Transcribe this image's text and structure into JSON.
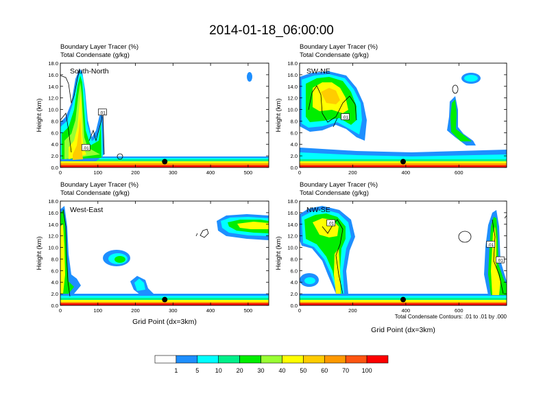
{
  "title": "2014-01-18_06:00:00",
  "colorbar": {
    "levels": [
      "1",
      "5",
      "10",
      "20",
      "30",
      "40",
      "50",
      "60",
      "70",
      "100"
    ],
    "colors": [
      "#ffffff",
      "#1e8fff",
      "#00ffff",
      "#00f08a",
      "#00ee00",
      "#99ff33",
      "#ffff00",
      "#ffcc00",
      "#ff9900",
      "#ff5511",
      "#ff0000"
    ]
  },
  "contour_info": "Total Condensate Contours: .01 to .01 by .000",
  "marker_color": "#000000",
  "chart_data": [
    {
      "type": "heatmap",
      "title": "South-North",
      "line1": "Boundary Layer Tracer    (%)",
      "line2": "Total Condensate    (g/kg)",
      "ylabel": "Height (km)",
      "xlabel": "",
      "xlim": [
        0,
        555
      ],
      "ylim": [
        0,
        18
      ],
      "xticks": [
        0,
        100,
        200,
        300,
        400,
        500
      ],
      "yticks": [
        "0.0",
        "2.0",
        "4.0",
        "6.0",
        "8.0",
        "10.0",
        "12.0",
        "14.0",
        "16.0",
        "18.0"
      ],
      "marker_x": 278,
      "marker_y": 1.0,
      "contour_labels": [
        {
          "text": ".01",
          "x": 112,
          "y": 9.5
        },
        {
          "text": ".01",
          "x": 68,
          "y": 3.4
        }
      ]
    },
    {
      "type": "heatmap",
      "title": "SW-NE",
      "line1": "Boundary Layer Tracer    (%)",
      "line2": "Total Condensate    (g/kg)",
      "ylabel": "Height (km)",
      "xlabel": "",
      "xlim": [
        0,
        780
      ],
      "ylim": [
        0,
        18
      ],
      "xticks": [
        0,
        200,
        400,
        600
      ],
      "yticks": [
        "0.0",
        "2.0",
        "4.0",
        "6.0",
        "8.0",
        "10.0",
        "12.0",
        "14.0",
        "16.0",
        "18.0"
      ],
      "marker_x": 390,
      "marker_y": 1.0,
      "contour_labels": [
        {
          "text": ".01",
          "x": 172,
          "y": 8.7
        }
      ]
    },
    {
      "type": "heatmap",
      "title": "West-East",
      "line1": "Boundary Layer Tracer    (%)",
      "line2": "Total Condensate    (g/kg)",
      "ylabel": "Height (km)",
      "xlabel": "Grid Point (dx=3km)",
      "xlim": [
        0,
        555
      ],
      "ylim": [
        0,
        18
      ],
      "xticks": [
        0,
        100,
        200,
        300,
        400,
        500
      ],
      "yticks": [
        "0.0",
        "2.0",
        "4.0",
        "6.0",
        "8.0",
        "10.0",
        "12.0",
        "14.0",
        "16.0",
        "18.0"
      ],
      "marker_x": 278,
      "marker_y": 1.0,
      "contour_labels": []
    },
    {
      "type": "heatmap",
      "title": "NW-SE",
      "line1": "Boundary Layer Tracer    (%)",
      "line2": "Total Condensate    (g/kg)",
      "ylabel": "Height (km)",
      "xlabel": "Grid Point (dx=3km)",
      "xlim": [
        0,
        780
      ],
      "ylim": [
        0,
        18
      ],
      "xticks": [
        0,
        200,
        400,
        600
      ],
      "yticks": [
        "0.0",
        "2.0",
        "4.0",
        "6.0",
        "8.0",
        "10.0",
        "12.0",
        "14.0",
        "16.0",
        "18.0"
      ],
      "marker_x": 390,
      "marker_y": 1.0,
      "contour_labels": [
        {
          "text": ".01",
          "x": 118,
          "y": 14.2
        },
        {
          "text": ".01",
          "x": 720,
          "y": 10.5
        },
        {
          "text": ".01",
          "x": 755,
          "y": 7.8
        }
      ]
    }
  ]
}
